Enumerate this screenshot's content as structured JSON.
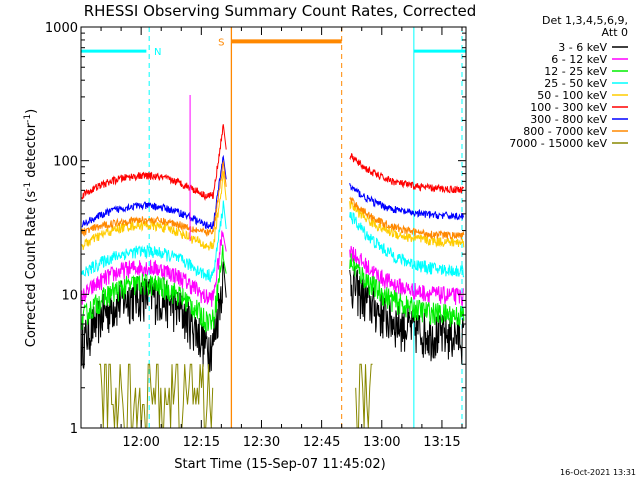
{
  "chart_data": {
    "type": "line",
    "title": "RHESSI Observing Summary Count Rates, Corrected",
    "xlabel": "Start Time (15-Sep-07 11:45:02)",
    "ylabel_main": "Corrected Count Rate (s",
    "ylabel_sup1": "-1",
    "ylabel_mid": " detector",
    "ylabel_sup2": "-1",
    "ylabel_end": ")",
    "yscale": "log",
    "ylim": [
      1,
      1000
    ],
    "xlim_minutes": [
      0,
      96
    ],
    "x_ticks": [
      {
        "m": 15,
        "label": "12:00"
      },
      {
        "m": 30,
        "label": "12:15"
      },
      {
        "m": 45,
        "label": "12:30"
      },
      {
        "m": 60,
        "label": "12:45"
      },
      {
        "m": 75,
        "label": "13:00"
      },
      {
        "m": 90,
        "label": "13:15"
      }
    ],
    "y_ticks": [
      {
        "v": 1,
        "label": "1"
      },
      {
        "v": 10,
        "label": "10"
      },
      {
        "v": 100,
        "label": "100"
      },
      {
        "v": 1000,
        "label": "1000"
      }
    ],
    "legend": {
      "header": [
        "Det 1,3,4,5,6,9,",
        "Att 0"
      ],
      "placement": "right"
    },
    "series": [
      {
        "name": "3 - 6 keV",
        "color": "#000000",
        "pre": [
          4.3,
          10
        ],
        "post_start": 13,
        "post_end": 4.8,
        "noise": 0.18
      },
      {
        "name": "6 - 12 keV",
        "color": "#ff00ff",
        "pre": [
          9.5,
          16
        ],
        "post_start": 22,
        "post_end": 9.5,
        "noise": 0.07
      },
      {
        "name": "12 - 25 keV",
        "color": "#00ee00",
        "pre": [
          6.5,
          12
        ],
        "post_start": 18,
        "post_end": 6.8,
        "noise": 0.09
      },
      {
        "name": "25 - 50 keV",
        "color": "#00ffff",
        "pre": [
          14,
          21
        ],
        "post_start": 40,
        "post_end": 14.5,
        "noise": 0.05
      },
      {
        "name": "50 - 100 keV",
        "color": "#ffcc00",
        "pre": [
          23,
          33
        ],
        "post_start": 48,
        "post_end": 24,
        "noise": 0.04
      },
      {
        "name": "100 - 300 keV",
        "color": "#ff0000",
        "pre": [
          55,
          77
        ],
        "post_start": 110,
        "post_end": 60,
        "noise": 0.03
      },
      {
        "name": "300 - 800 keV",
        "color": "#0000ff",
        "pre": [
          33,
          46
        ],
        "post_start": 65,
        "post_end": 38,
        "noise": 0.03
      },
      {
        "name": "800 - 7000 keV",
        "color": "#ff8800",
        "pre": [
          29,
          36
        ],
        "post_start": 52,
        "post_end": 27,
        "noise": 0.03
      },
      {
        "name": "7000 - 15000 keV",
        "color": "#888800",
        "pre": [
          1,
          3
        ],
        "post_start": 2,
        "post_end": 1,
        "noise": 0
      }
    ],
    "annotations": {
      "N": {
        "label": "N",
        "color": "#00ffff"
      },
      "S": {
        "label": "S",
        "color": "#ff8800"
      }
    }
  },
  "timestamp": "16-Oct-2021 13:31"
}
